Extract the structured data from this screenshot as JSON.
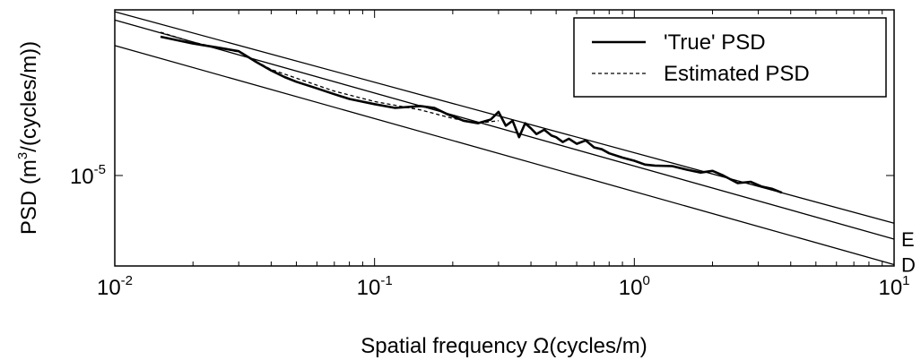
{
  "chart_data": {
    "type": "line",
    "title": "",
    "xlabel": "Spatial frequency Ω(cycles/m)",
    "ylabel_base": "PSD (m",
    "ylabel_sup": "3",
    "ylabel_rest": "/(cycles/m))",
    "x_scale": "log",
    "y_scale": "log",
    "xlim": [
      0.01,
      10
    ],
    "ylim": [
      2.2e-06,
      0.00016
    ],
    "x_ticks": [
      {
        "base": "10",
        "exp": "-2",
        "value": 0.01
      },
      {
        "base": "10",
        "exp": "-1",
        "value": 0.1
      },
      {
        "base": "10",
        "exp": "0",
        "value": 1
      },
      {
        "base": "10",
        "exp": "1",
        "value": 10
      }
    ],
    "y_ticks": [
      {
        "base": "10",
        "exp": "-5",
        "value": 1e-05
      }
    ],
    "grid": false,
    "legend_position": "top-right",
    "series": [
      {
        "name": "'True' PSD",
        "style": "solid",
        "x": [
          0.015,
          0.02,
          0.025,
          0.03,
          0.035,
          0.04,
          0.045,
          0.05,
          0.06,
          0.07,
          0.08,
          0.1,
          0.12,
          0.15,
          0.17,
          0.19,
          0.22,
          0.25,
          0.28,
          0.3,
          0.32,
          0.34,
          0.36,
          0.38,
          0.4,
          0.42,
          0.45,
          0.48,
          0.5,
          0.53,
          0.56,
          0.6,
          0.65,
          0.7,
          0.75,
          0.8,
          0.9,
          1.0,
          1.1,
          1.2,
          1.4,
          1.6,
          1.8,
          2.0,
          2.2,
          2.5,
          2.8,
          3.1,
          3.4,
          3.7
        ],
        "y": [
          0.000102,
          9.1e-05,
          8.5e-05,
          8e-05,
          6.7e-05,
          5.8e-05,
          5.2e-05,
          4.8e-05,
          4.3e-05,
          3.9e-05,
          3.6e-05,
          3.3e-05,
          3.1e-05,
          3.2e-05,
          3.1e-05,
          2.8e-05,
          2.5e-05,
          2.4e-05,
          2.55e-05,
          2.9e-05,
          2.3e-05,
          2.5e-05,
          1.9e-05,
          2.4e-05,
          2.2e-05,
          2e-05,
          2.15e-05,
          1.95e-05,
          1.9e-05,
          1.75e-05,
          1.85e-05,
          1.7e-05,
          1.8e-05,
          1.6e-05,
          1.55e-05,
          1.45e-05,
          1.35e-05,
          1.28e-05,
          1.2e-05,
          1.18e-05,
          1.17e-05,
          1.1e-05,
          1.05e-05,
          1.08e-05,
          1e-05,
          8.8e-06,
          9e-06,
          8.3e-06,
          8e-06,
          7.5e-06
        ]
      },
      {
        "name": "Estimated PSD",
        "style": "dashed",
        "x": [
          0.015,
          0.02,
          0.03,
          0.04,
          0.05,
          0.07,
          0.1,
          0.15,
          0.2,
          0.25,
          0.3
        ],
        "y": [
          0.00011,
          9.3e-05,
          7.9e-05,
          5.9e-05,
          5.1e-05,
          4.1e-05,
          3.45e-05,
          3e-05,
          2.6e-05,
          2.4e-05,
          2.5e-05
        ]
      }
    ],
    "reference_lines": [
      {
        "label": "",
        "x": [
          0.01,
          10
        ],
        "y": [
          0.000155,
          4.5e-06
        ]
      },
      {
        "label": "E",
        "x": [
          0.01,
          10
        ],
        "y": [
          0.000135,
          3.45e-06
        ]
      },
      {
        "label": "D",
        "x": [
          0.01,
          10
        ],
        "y": [
          8.8e-05,
          2.25e-06
        ]
      }
    ]
  }
}
